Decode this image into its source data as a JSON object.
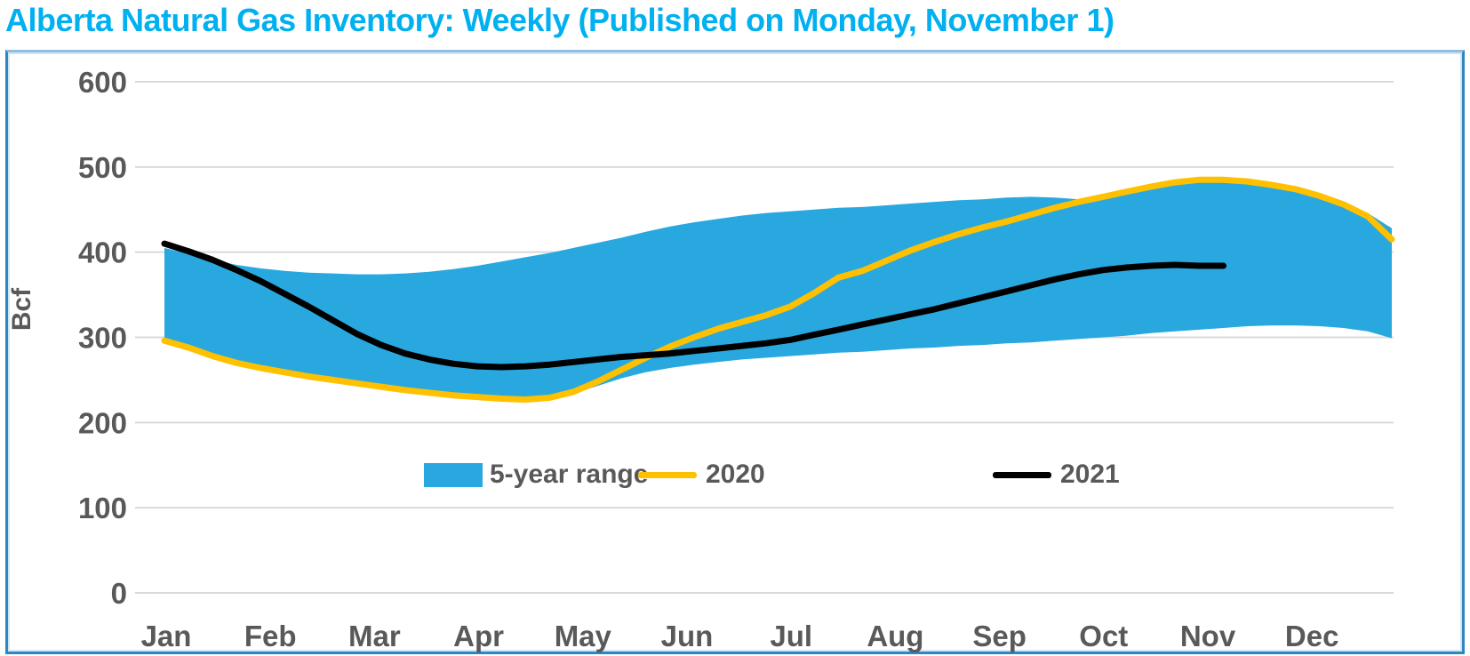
{
  "title": {
    "text": "Alberta Natural Gas Inventory: Weekly (Published on Monday, November 1)",
    "color": "#00b0f0"
  },
  "chart": {
    "ylabel": "Bcf",
    "y_ticks": [
      0,
      100,
      200,
      300,
      400,
      500,
      600
    ],
    "x_labels": [
      "Jan",
      "Feb",
      "Mar",
      "Apr",
      "May",
      "Jun",
      "Jul",
      "Aug",
      "Sep",
      "Oct",
      "Nov",
      "Dec"
    ],
    "legend": [
      {
        "label": "5-year range",
        "type": "swatch",
        "color": "#29a8e0"
      },
      {
        "label": "2020",
        "type": "line",
        "color": "#ffc000"
      },
      {
        "label": "2021",
        "type": "line",
        "color": "#000000"
      }
    ],
    "colors": {
      "band": "#29a8e0",
      "line_2020": "#ffc000",
      "line_2021": "#000000",
      "gridline": "#d9d9d9",
      "axis_text": "#595959",
      "border": "#2e86c1",
      "title": "#00b0f0"
    }
  },
  "chart_data": {
    "type": "area",
    "title": "Alberta Natural Gas Inventory: Weekly (Published on Monday, November 1)",
    "xlabel": "",
    "ylabel": "Bcf",
    "ylim": [
      0,
      600
    ],
    "grid": "horizontal",
    "legend_position": "center-inside",
    "x_unit": "week of year (1 = early Jan, 52 = late Dec)",
    "categories_months": [
      "Jan",
      "Feb",
      "Mar",
      "Apr",
      "May",
      "Jun",
      "Jul",
      "Aug",
      "Sep",
      "Oct",
      "Nov",
      "Dec"
    ],
    "series": [
      {
        "name": "5-year range",
        "type": "band",
        "color": "#29a8e0",
        "upper": [
          405,
          398,
          391,
          385,
          381,
          378,
          376,
          375,
          374,
          374,
          375,
          377,
          380,
          384,
          389,
          394,
          399,
          405,
          411,
          417,
          424,
          430,
          435,
          439,
          443,
          446,
          448,
          450,
          452,
          453,
          455,
          457,
          459,
          461,
          462,
          464,
          465,
          464,
          462,
          464,
          468,
          474,
          480,
          484,
          485,
          483,
          479,
          474,
          466,
          457,
          446,
          428
        ],
        "lower": [
          296,
          288,
          278,
          270,
          264,
          259,
          254,
          250,
          246,
          242,
          238,
          235,
          232,
          230,
          228,
          227,
          229,
          234,
          243,
          252,
          259,
          264,
          268,
          271,
          274,
          276,
          278,
          280,
          282,
          283,
          285,
          287,
          288,
          290,
          291,
          293,
          294,
          296,
          298,
          300,
          302,
          305,
          307,
          309,
          311,
          313,
          314,
          314,
          313,
          311,
          307,
          299
        ]
      },
      {
        "name": "2020",
        "type": "line",
        "color": "#ffc000",
        "values": [
          296,
          288,
          278,
          270,
          264,
          259,
          254,
          250,
          246,
          242,
          238,
          235,
          232,
          230,
          228,
          227,
          229,
          236,
          248,
          262,
          276,
          289,
          300,
          310,
          318,
          326,
          336,
          352,
          370,
          378,
          390,
          402,
          412,
          421,
          429,
          436,
          444,
          452,
          459,
          465,
          471,
          477,
          482,
          485,
          485,
          483,
          479,
          474,
          466,
          456,
          442,
          415
        ]
      },
      {
        "name": "2021",
        "type": "line",
        "color": "#000000",
        "note": "series ends at Nov 1 publication date",
        "values": [
          410,
          401,
          391,
          379,
          366,
          351,
          336,
          320,
          304,
          291,
          281,
          274,
          269,
          266,
          265,
          266,
          268,
          271,
          274,
          277,
          279,
          281,
          284,
          287,
          290,
          293,
          297,
          303,
          309,
          315,
          321,
          327,
          333,
          340,
          347,
          354,
          361,
          368,
          374,
          379,
          382,
          384,
          385,
          384,
          384
        ]
      }
    ]
  }
}
